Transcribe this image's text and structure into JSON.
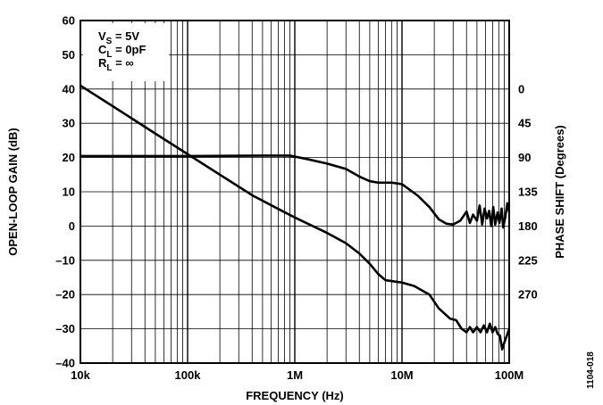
{
  "chart_data": {
    "type": "line",
    "title": "",
    "xlabel": "FREQUENCY (Hz)",
    "ylabel_left": "OPEN-LOOP GAIN (dB)",
    "ylabel_right": "PHASE SHIFT (Degrees)",
    "x_scale": "log",
    "xlim": [
      10000,
      100000000
    ],
    "ylim_left": [
      -40,
      60
    ],
    "x_ticks": [
      {
        "value": 10000,
        "label": "10k"
      },
      {
        "value": 100000,
        "label": "100k"
      },
      {
        "value": 1000000,
        "label": "1M"
      },
      {
        "value": 10000000,
        "label": "10M"
      },
      {
        "value": 100000000,
        "label": "100M"
      }
    ],
    "y_ticks_left": [
      {
        "value": 60,
        "label": "60"
      },
      {
        "value": 50,
        "label": "50"
      },
      {
        "value": 40,
        "label": "40"
      },
      {
        "value": 30,
        "label": "30"
      },
      {
        "value": 20,
        "label": "20"
      },
      {
        "value": 10,
        "label": "10"
      },
      {
        "value": 0,
        "label": "0"
      },
      {
        "value": -10,
        "label": "–10"
      },
      {
        "value": -20,
        "label": "–20"
      },
      {
        "value": -30,
        "label": "–30"
      },
      {
        "value": -40,
        "label": "–40"
      }
    ],
    "y_ticks_right": [
      {
        "value": 0,
        "label": "0"
      },
      {
        "value": 45,
        "label": "45"
      },
      {
        "value": 90,
        "label": "90"
      },
      {
        "value": 135,
        "label": "135"
      },
      {
        "value": 180,
        "label": "180"
      },
      {
        "value": 225,
        "label": "225"
      },
      {
        "value": 270,
        "label": "270"
      }
    ],
    "phase_axis": {
      "reference_gain_db": 40,
      "db_per_degree": 0.2222
    },
    "grid": true,
    "legend_box": {
      "placement": "top-left",
      "lines": [
        {
          "base": "V",
          "sub": "S",
          "rest": " = 5V"
        },
        {
          "base": "C",
          "sub": "L",
          "rest": " = 0pF"
        },
        {
          "base": "R",
          "sub": "L",
          "rest": " = ∞"
        }
      ]
    },
    "series": [
      {
        "axis": "left",
        "color": "#000000",
        "points": [
          [
            10000,
            41
          ],
          [
            20000,
            35
          ],
          [
            50000,
            27
          ],
          [
            100000,
            21
          ],
          [
            200000,
            15
          ],
          [
            400000,
            9
          ],
          [
            700000,
            5
          ],
          [
            1000000,
            2.5
          ],
          [
            2000000,
            -2
          ],
          [
            3000000,
            -5
          ],
          [
            4000000,
            -8
          ],
          [
            5000000,
            -11
          ],
          [
            6000000,
            -14
          ],
          [
            7000000,
            -15.8
          ],
          [
            10000000,
            -16.5
          ],
          [
            13000000,
            -17.5
          ],
          [
            18000000,
            -20
          ],
          [
            22000000,
            -24
          ],
          [
            28000000,
            -27
          ],
          [
            32000000,
            -27.5
          ],
          [
            36000000,
            -30
          ],
          [
            40000000,
            -31
          ],
          [
            43000000,
            -29.5
          ],
          [
            46000000,
            -31
          ],
          [
            50000000,
            -29.5
          ],
          [
            54000000,
            -31
          ],
          [
            58000000,
            -29
          ],
          [
            62000000,
            -31
          ],
          [
            66000000,
            -28.5
          ],
          [
            70000000,
            -31
          ],
          [
            74000000,
            -29.5
          ],
          [
            78000000,
            -31.5
          ],
          [
            82000000,
            -32
          ],
          [
            86000000,
            -36
          ],
          [
            90000000,
            -34
          ],
          [
            95000000,
            -32
          ],
          [
            100000000,
            -30
          ]
        ]
      },
      {
        "axis": "right",
        "color": "#000000",
        "points": [
          [
            10000,
            88
          ],
          [
            100000,
            88
          ],
          [
            500000,
            87.5
          ],
          [
            900000,
            87.5
          ],
          [
            1300000,
            92
          ],
          [
            2000000,
            98
          ],
          [
            3000000,
            105
          ],
          [
            4000000,
            115
          ],
          [
            5000000,
            121
          ],
          [
            6000000,
            123
          ],
          [
            8000000,
            123
          ],
          [
            10000000,
            125
          ],
          [
            14000000,
            140
          ],
          [
            18000000,
            155
          ],
          [
            22000000,
            171
          ],
          [
            26000000,
            177
          ],
          [
            30000000,
            178
          ],
          [
            35000000,
            173
          ],
          [
            40000000,
            161
          ],
          [
            43000000,
            176
          ],
          [
            46000000,
            165
          ],
          [
            50000000,
            173
          ],
          [
            53000000,
            153
          ],
          [
            56000000,
            178
          ],
          [
            59000000,
            157
          ],
          [
            62000000,
            170
          ],
          [
            65000000,
            160
          ],
          [
            68000000,
            180
          ],
          [
            71000000,
            155
          ],
          [
            74000000,
            178
          ],
          [
            78000000,
            162
          ],
          [
            81000000,
            176
          ],
          [
            85000000,
            157
          ],
          [
            88000000,
            182
          ],
          [
            92000000,
            168
          ],
          [
            96000000,
            150
          ],
          [
            100000000,
            162
          ]
        ]
      }
    ]
  },
  "figure_id": "1104-018"
}
